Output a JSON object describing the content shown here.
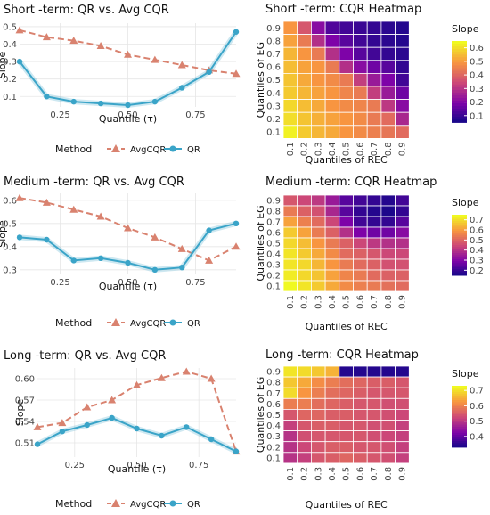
{
  "chart_data": [
    {
      "type": "line",
      "title": "Short -term: QR vs. Avg CQR",
      "xlabel": "Quantile (τ)",
      "ylabel": "Slope",
      "xlim": [
        0.1,
        0.9
      ],
      "ylim": [
        0.04,
        0.52
      ],
      "x_ticks": [
        "0.25",
        "0.50",
        "0.75"
      ],
      "y_ticks": [
        "0.5",
        "0.4",
        "0.3",
        "0.2",
        "0.1"
      ],
      "x": [
        0.1,
        0.2,
        0.3,
        0.4,
        0.5,
        0.6,
        0.7,
        0.8,
        0.9
      ],
      "legend_title": "Method",
      "series": [
        {
          "name": "AvgCQR",
          "color": "#d9826f",
          "values": [
            0.48,
            0.44,
            0.42,
            0.39,
            0.34,
            0.31,
            0.28,
            0.25,
            0.23
          ]
        },
        {
          "name": "QR",
          "color": "#3aa4c8",
          "values": [
            0.3,
            0.1,
            0.07,
            0.06,
            0.05,
            0.07,
            0.15,
            0.24,
            0.47
          ]
        }
      ]
    },
    {
      "type": "heatmap",
      "title": "Short -term: CQR Heatmap",
      "xlabel": "Quantiles of REC",
      "ylabel": "Quantiles of EG",
      "x_ticks": [
        "0.1",
        "0.2",
        "0.3",
        "0.4",
        "0.5",
        "0.6",
        "0.7",
        "0.8",
        "0.9"
      ],
      "y_ticks": [
        "0.9",
        "0.8",
        "0.7",
        "0.6",
        "0.5",
        "0.4",
        "0.3",
        "0.2",
        "0.1"
      ],
      "legend_title": "Slope",
      "legend_ticks": [
        "0.6",
        "0.5",
        "0.4",
        "0.3",
        "0.2",
        "0.1"
      ],
      "colorscale": [
        "#0d0887",
        "#7e03a8",
        "#cc4778",
        "#f89540",
        "#f0f921"
      ],
      "zlim": [
        0.05,
        0.65
      ],
      "rows": [
        [
          0.5,
          0.38,
          0.22,
          0.14,
          0.12,
          0.11,
          0.1,
          0.09,
          0.08
        ],
        [
          0.52,
          0.45,
          0.3,
          0.2,
          0.15,
          0.12,
          0.1,
          0.09,
          0.08
        ],
        [
          0.55,
          0.5,
          0.45,
          0.3,
          0.2,
          0.15,
          0.12,
          0.1,
          0.09
        ],
        [
          0.56,
          0.52,
          0.5,
          0.45,
          0.3,
          0.22,
          0.18,
          0.15,
          0.1
        ],
        [
          0.57,
          0.53,
          0.5,
          0.48,
          0.45,
          0.33,
          0.25,
          0.2,
          0.12
        ],
        [
          0.58,
          0.55,
          0.52,
          0.5,
          0.47,
          0.45,
          0.33,
          0.25,
          0.18
        ],
        [
          0.6,
          0.56,
          0.53,
          0.5,
          0.48,
          0.47,
          0.45,
          0.32,
          0.22
        ],
        [
          0.61,
          0.57,
          0.54,
          0.52,
          0.5,
          0.48,
          0.45,
          0.42,
          0.28
        ],
        [
          0.64,
          0.58,
          0.55,
          0.53,
          0.5,
          0.48,
          0.46,
          0.44,
          0.42
        ]
      ]
    },
    {
      "type": "line",
      "title": "Medium -term: QR vs. Avg CQR",
      "xlabel": "Quantile (τ)",
      "ylabel": "Slope",
      "xlim": [
        0.1,
        0.9
      ],
      "ylim": [
        0.28,
        0.63
      ],
      "x_ticks": [
        "0.25",
        "0.50",
        "0.75"
      ],
      "y_ticks": [
        "0.6",
        "0.5",
        "0.4",
        "0.3"
      ],
      "x": [
        0.1,
        0.2,
        0.3,
        0.4,
        0.5,
        0.6,
        0.7,
        0.8,
        0.9
      ],
      "legend_title": "Method",
      "series": [
        {
          "name": "AvgCQR",
          "color": "#d9826f",
          "values": [
            0.61,
            0.59,
            0.56,
            0.53,
            0.48,
            0.44,
            0.39,
            0.34,
            0.4
          ]
        },
        {
          "name": "QR",
          "color": "#3aa4c8",
          "values": [
            0.44,
            0.43,
            0.34,
            0.35,
            0.33,
            0.3,
            0.31,
            0.47,
            0.5
          ]
        }
      ]
    },
    {
      "type": "heatmap",
      "title": "Medium -term: CQR Heatmap",
      "xlabel": "Quantiles of REC",
      "ylabel": "Quantiles of EG",
      "x_ticks": [
        "0.1",
        "0.2",
        "0.3",
        "0.4",
        "0.5",
        "0.6",
        "0.7",
        "0.8",
        "0.9"
      ],
      "y_ticks": [
        "0.9",
        "0.8",
        "0.7",
        "0.6",
        "0.5",
        "0.4",
        "0.3",
        "0.2",
        "0.1"
      ],
      "legend_title": "Slope",
      "legend_ticks": [
        "0.7",
        "0.6",
        "0.5",
        "0.4",
        "0.3",
        "0.2"
      ],
      "colorscale": [
        "#0d0887",
        "#7e03a8",
        "#cc4778",
        "#f89540",
        "#f0f921"
      ],
      "zlim": [
        0.15,
        0.75
      ],
      "rows": [
        [
          0.48,
          0.45,
          0.42,
          0.35,
          0.25,
          0.22,
          0.2,
          0.18,
          0.22
        ],
        [
          0.55,
          0.5,
          0.47,
          0.38,
          0.25,
          0.2,
          0.18,
          0.17,
          0.2
        ],
        [
          0.62,
          0.56,
          0.52,
          0.45,
          0.3,
          0.22,
          0.2,
          0.2,
          0.25
        ],
        [
          0.68,
          0.62,
          0.55,
          0.5,
          0.4,
          0.3,
          0.28,
          0.28,
          0.32
        ],
        [
          0.7,
          0.66,
          0.6,
          0.55,
          0.5,
          0.45,
          0.42,
          0.4,
          0.4
        ],
        [
          0.72,
          0.68,
          0.63,
          0.58,
          0.52,
          0.5,
          0.48,
          0.45,
          0.45
        ],
        [
          0.72,
          0.7,
          0.65,
          0.6,
          0.55,
          0.52,
          0.5,
          0.47,
          0.47
        ],
        [
          0.73,
          0.7,
          0.67,
          0.62,
          0.57,
          0.55,
          0.52,
          0.5,
          0.5
        ],
        [
          0.75,
          0.72,
          0.68,
          0.63,
          0.58,
          0.56,
          0.55,
          0.53,
          0.52
        ]
      ]
    },
    {
      "type": "line",
      "title": "Long -term: QR vs. Avg CQR",
      "xlabel": "Quantile (τ)",
      "ylabel": "Slope",
      "xlim": [
        0.1,
        0.9
      ],
      "ylim": [
        0.49,
        0.615
      ],
      "x_ticks": [
        "0.25",
        "0.50",
        "0.75"
      ],
      "y_ticks": [
        "0.60",
        "0.57",
        "0.54",
        "0.51"
      ],
      "x": [
        0.1,
        0.2,
        0.3,
        0.4,
        0.5,
        0.6,
        0.7,
        0.8,
        0.9
      ],
      "legend_title": "Method",
      "series": [
        {
          "name": "AvgCQR",
          "color": "#d9826f",
          "values": [
            0.532,
            0.538,
            0.56,
            0.57,
            0.591,
            0.601,
            0.61,
            0.6,
            0.498
          ]
        },
        {
          "name": "QR",
          "color": "#3aa4c8",
          "values": [
            0.508,
            0.526,
            0.535,
            0.545,
            0.53,
            0.52,
            0.532,
            0.515,
            0.498
          ]
        }
      ]
    },
    {
      "type": "heatmap",
      "title": "Long -term: CQR Heatmap",
      "xlabel": "Quantiles of REC",
      "ylabel": "Quantiles of EG",
      "x_ticks": [
        "0.1",
        "0.2",
        "0.3",
        "0.4",
        "0.5",
        "0.6",
        "0.7",
        "0.8",
        "0.9"
      ],
      "y_ticks": [
        "0.9",
        "0.8",
        "0.7",
        "0.6",
        "0.5",
        "0.4",
        "0.3",
        "0.2",
        "0.1"
      ],
      "legend_title": "Slope",
      "legend_ticks": [
        "0.7",
        "0.6",
        "0.5",
        "0.4"
      ],
      "colorscale": [
        "#0d0887",
        "#7e03a8",
        "#cc4778",
        "#f89540",
        "#f0f921"
      ],
      "zlim": [
        0.33,
        0.73
      ],
      "rows": [
        [
          0.71,
          0.7,
          0.68,
          0.66,
          0.35,
          0.35,
          0.35,
          0.35,
          0.35
        ],
        [
          0.68,
          0.65,
          0.62,
          0.6,
          0.58,
          0.57,
          0.56,
          0.56,
          0.55
        ],
        [
          0.7,
          0.63,
          0.6,
          0.58,
          0.57,
          0.56,
          0.55,
          0.55,
          0.55
        ],
        [
          0.6,
          0.6,
          0.58,
          0.57,
          0.56,
          0.55,
          0.55,
          0.54,
          0.54
        ],
        [
          0.55,
          0.57,
          0.57,
          0.56,
          0.56,
          0.55,
          0.55,
          0.54,
          0.53
        ],
        [
          0.52,
          0.55,
          0.56,
          0.56,
          0.55,
          0.55,
          0.54,
          0.54,
          0.52
        ],
        [
          0.5,
          0.54,
          0.55,
          0.55,
          0.55,
          0.55,
          0.54,
          0.53,
          0.52
        ],
        [
          0.5,
          0.53,
          0.55,
          0.56,
          0.56,
          0.55,
          0.55,
          0.54,
          0.52
        ],
        [
          0.5,
          0.52,
          0.55,
          0.56,
          0.57,
          0.56,
          0.55,
          0.54,
          0.52
        ]
      ]
    }
  ]
}
